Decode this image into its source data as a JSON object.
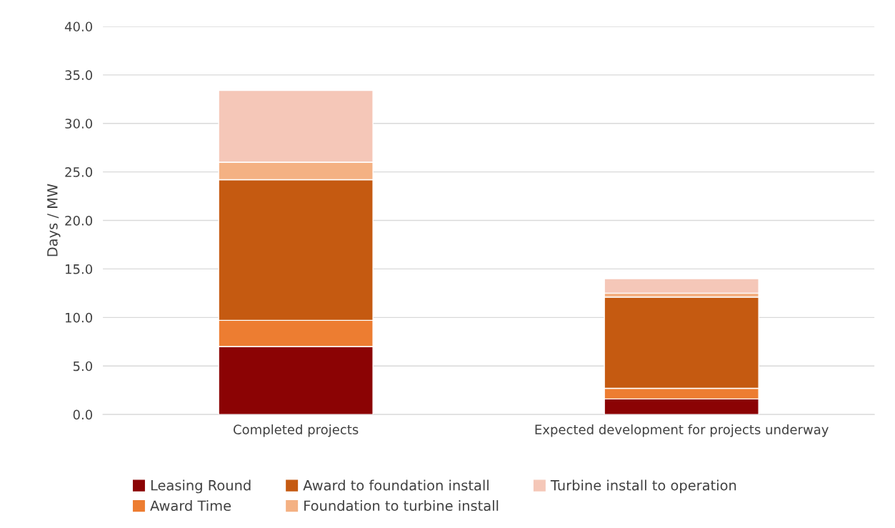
{
  "chart_data": {
    "type": "bar",
    "stacked": true,
    "ylabel": "Days / MW",
    "categories": [
      "Completed projects",
      "Expected development for projects underway"
    ],
    "series": [
      {
        "name": "Leasing Round",
        "color": "#8b0304",
        "values": [
          7.0,
          1.6
        ]
      },
      {
        "name": "Award Time",
        "color": "#ed7d31",
        "values": [
          2.7,
          1.1
        ]
      },
      {
        "name": "Award to foundation install",
        "color": "#c55a11",
        "values": [
          14.5,
          9.4
        ]
      },
      {
        "name": "Foundation to turbine install",
        "color": "#f4b183",
        "values": [
          1.8,
          0.4
        ]
      },
      {
        "name": "Turbine install to operation",
        "color": "#f5c7b8",
        "values": [
          7.4,
          1.5
        ]
      }
    ],
    "ylim": [
      0,
      40
    ],
    "yticks": [
      {
        "value": 0,
        "label": "0.0"
      },
      {
        "value": 5,
        "label": "5.0"
      },
      {
        "value": 10,
        "label": "10.0"
      },
      {
        "value": 15,
        "label": "15.0"
      },
      {
        "value": 20,
        "label": "20.0"
      },
      {
        "value": 25,
        "label": "25.0"
      },
      {
        "value": 30,
        "label": "30.0"
      },
      {
        "value": 35,
        "label": "35.0"
      },
      {
        "value": 40,
        "label": "40.0"
      }
    ],
    "grid": "y",
    "legend": "bottom"
  }
}
